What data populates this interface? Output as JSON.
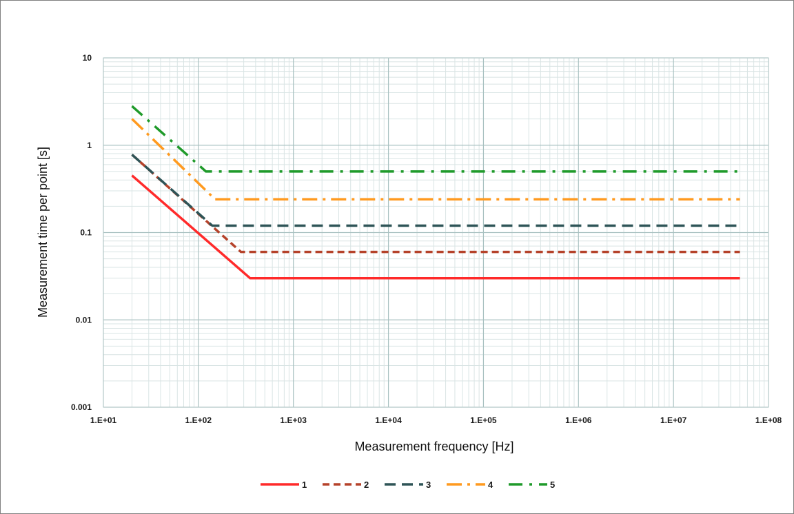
{
  "chart_data": {
    "type": "line",
    "xlabel": "Measurement frequency [Hz]",
    "ylabel": "Measurement time per point [s]",
    "x_scale": "log",
    "y_scale": "log",
    "xlim": [
      10,
      100000000
    ],
    "ylim": [
      0.001,
      10
    ],
    "grid": true,
    "legend_position": "bottom",
    "x_tick_labels": [
      "1.E+01",
      "1.E+02",
      "1.E+03",
      "1.E+04",
      "1.E+05",
      "1.E+06",
      "1.E+07",
      "1.E+08"
    ],
    "y_tick_labels": [
      "10",
      "1",
      "0.1",
      "0.01",
      "0.001"
    ],
    "series": [
      {
        "name": "1",
        "color": "#ff2a2a",
        "style": "solid",
        "points": [
          [
            20,
            0.45
          ],
          [
            350,
            0.03
          ],
          [
            50000000,
            0.03
          ]
        ]
      },
      {
        "name": "2",
        "color": "#b5422a",
        "style": "dash",
        "points": [
          [
            20,
            0.78
          ],
          [
            280,
            0.06
          ],
          [
            50000000,
            0.06
          ]
        ]
      },
      {
        "name": "3",
        "color": "#2e5457",
        "style": "long-dash",
        "points": [
          [
            20,
            0.78
          ],
          [
            140,
            0.12
          ],
          [
            50000000,
            0.12
          ]
        ]
      },
      {
        "name": "4",
        "color": "#ff9a1f",
        "style": "long-dash-dot",
        "points": [
          [
            20,
            2.0
          ],
          [
            150,
            0.24
          ],
          [
            50000000,
            0.24
          ]
        ]
      },
      {
        "name": "5",
        "color": "#1f9a2a",
        "style": "dash-dot",
        "points": [
          [
            20,
            2.8
          ],
          [
            120,
            0.5
          ],
          [
            50000000,
            0.5
          ]
        ]
      }
    ]
  }
}
